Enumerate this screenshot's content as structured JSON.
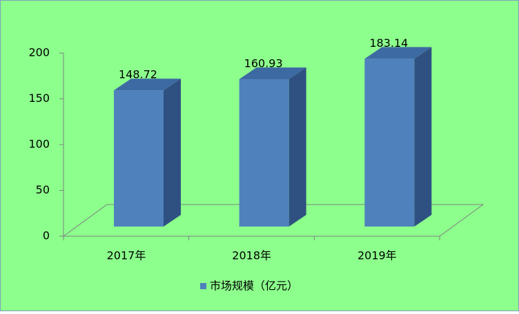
{
  "chart_data": {
    "type": "bar3d",
    "categories": [
      "2017年",
      "2018年",
      "2019年"
    ],
    "series": [
      {
        "name": "市场规模（亿元）",
        "color": "#4f81bd",
        "values": [
          148.72,
          160.93,
          183.14
        ]
      }
    ],
    "ylim": [
      0,
      200
    ],
    "yticks": [
      0,
      50,
      100,
      150,
      200
    ],
    "legend": "bottom"
  }
}
